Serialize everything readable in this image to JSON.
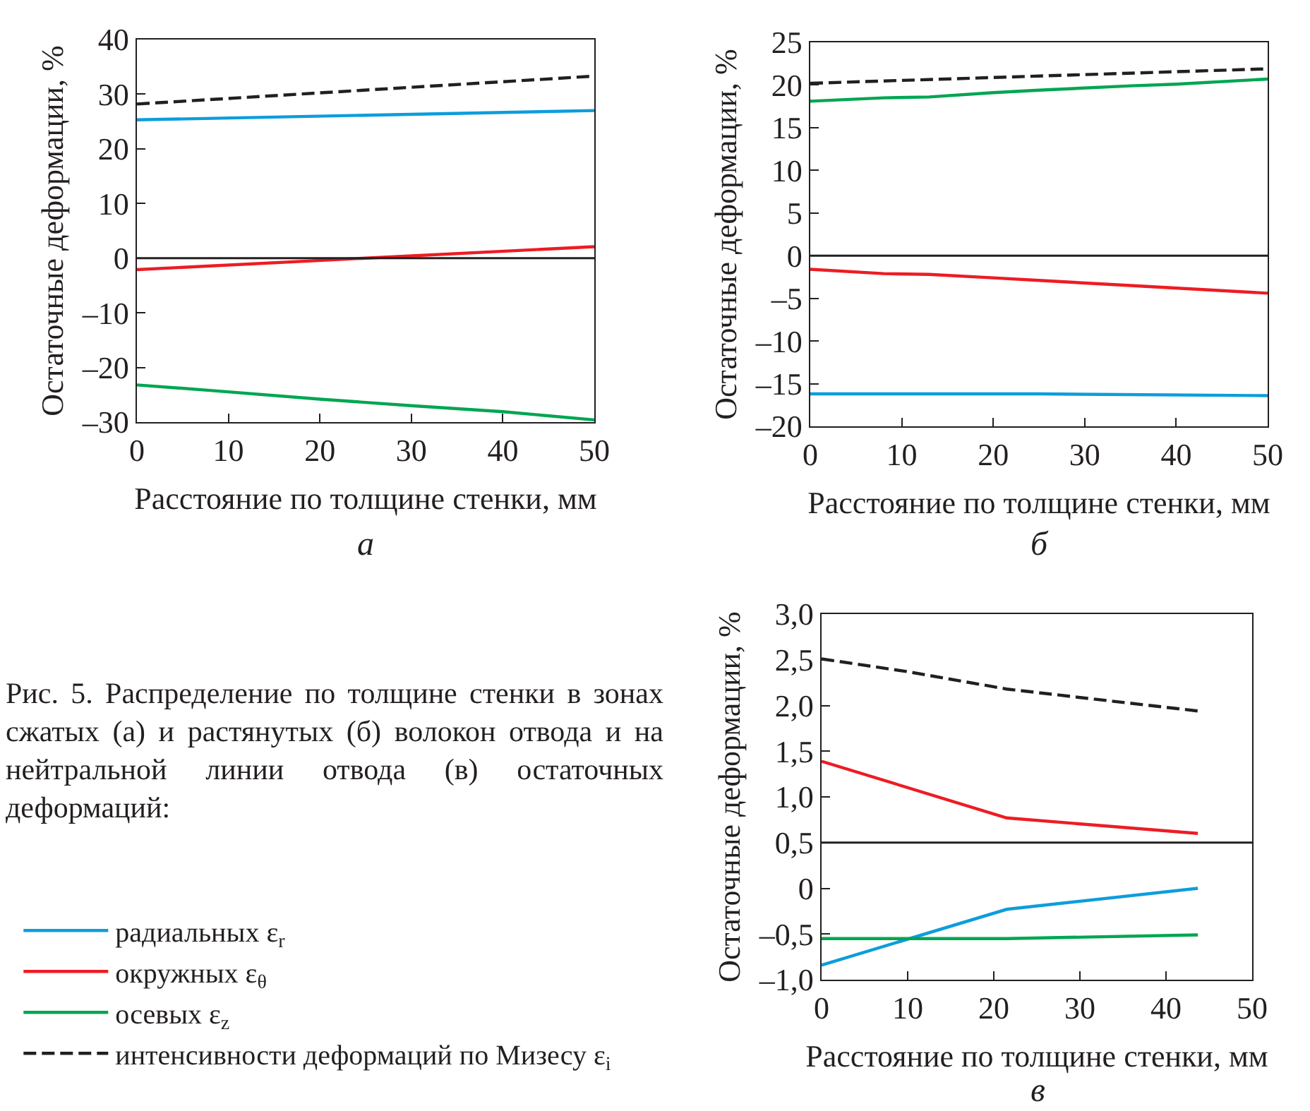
{
  "chart_data": [
    {
      "type": "line",
      "xlabel": "Расстояние по толщине стенки, мм",
      "ylabel": "Остаточные деформации, %",
      "annotations": [
        "а"
      ],
      "xlim": [
        0,
        50
      ],
      "xticks": [
        0,
        10,
        20,
        30,
        40,
        50
      ],
      "ylim": [
        -30,
        40
      ],
      "yticks": [
        {
          "value": -30,
          "label": "–30"
        },
        {
          "value": -20,
          "label": "–20"
        },
        {
          "value": -10,
          "label": "–10"
        },
        0,
        10,
        20,
        30,
        40
      ],
      "grid": false,
      "ref_lines": [
        {
          "axis": "y",
          "value": 0,
          "color": "#231f20"
        }
      ],
      "series": [
        {
          "color": "#231f20",
          "line_style": "dashed",
          "x": [
            0,
            50
          ],
          "values": [
            28.2,
            33.3
          ]
        },
        {
          "color": "#0d9ddb",
          "x": [
            0,
            50
          ],
          "values": [
            25.3,
            27.0
          ]
        },
        {
          "color": "#ed1c24",
          "x": [
            0,
            50
          ],
          "values": [
            -2.1,
            2.1
          ]
        },
        {
          "color": "#00a651",
          "x": [
            0,
            8,
            20,
            25,
            30,
            40,
            50
          ],
          "values": [
            -23.2,
            -24.2,
            -25.8,
            -26.4,
            -27.0,
            -28.1,
            -29.6
          ]
        }
      ]
    },
    {
      "type": "line",
      "xlabel": "Расстояние по толщине стенки, мм",
      "ylabel": "Остаточные деформации, %",
      "annotations": [
        "б"
      ],
      "xlim": [
        0,
        50
      ],
      "xticks": [
        0,
        10,
        20,
        30,
        40,
        50
      ],
      "ylim": [
        -20,
        25
      ],
      "yticks": [
        {
          "value": -20,
          "label": "–20"
        },
        {
          "value": -15,
          "label": "–15"
        },
        {
          "value": -10,
          "label": "–10"
        },
        {
          "value": -5,
          "label": "–5"
        },
        0,
        5,
        10,
        15,
        20,
        25
      ],
      "grid": false,
      "ref_lines": [
        {
          "axis": "y",
          "value": 0,
          "color": "#231f20"
        }
      ],
      "series": [
        {
          "color": "#231f20",
          "line_style": "dashed",
          "x": [
            0,
            50
          ],
          "values": [
            20.2,
            21.9
          ]
        },
        {
          "color": "#00a651",
          "x": [
            0,
            8,
            13,
            20,
            25,
            35,
            40,
            50
          ],
          "values": [
            18.1,
            18.5,
            18.6,
            19.1,
            19.4,
            19.9,
            20.1,
            20.7
          ]
        },
        {
          "color": "#ed1c24",
          "x": [
            0,
            8,
            13,
            20,
            25,
            35,
            50
          ],
          "values": [
            -1.6,
            -2.1,
            -2.2,
            -2.6,
            -2.9,
            -3.5,
            -4.4
          ]
        },
        {
          "color": "#0d9ddb",
          "x": [
            0,
            25,
            50
          ],
          "values": [
            -16.2,
            -16.2,
            -16.4
          ]
        }
      ]
    },
    {
      "type": "line",
      "xlabel": "Расстояние по толщине стенки, мм",
      "ylabel": "Остаточные деформации, %",
      "annotations": [
        "в",
        "Рис. 5. Распределение по толщине стенки в зонах сжатых (а) и растянутых (б) волокон отвода и на нейтральной линии отвода (в) остаточных деформаций:"
      ],
      "xlim": [
        0,
        50
      ],
      "xticks": [
        0,
        10,
        20,
        30,
        40,
        50
      ],
      "ylim": [
        -1,
        3
      ],
      "yticks": [
        {
          "value": -1,
          "label": "–1,0"
        },
        {
          "value": -0.5,
          "label": "–0,5"
        },
        0,
        {
          "value": 0.5,
          "label": "0,5"
        },
        {
          "value": 1,
          "label": "1,0"
        },
        {
          "value": 1.5,
          "label": "1,5"
        },
        {
          "value": 2,
          "label": "2,0"
        },
        {
          "value": 2.5,
          "label": "2,5"
        },
        {
          "value": 3,
          "label": "3,0"
        }
      ],
      "grid": false,
      "legend": "left",
      "ref_lines": [
        {
          "axis": "y",
          "value": 0.5,
          "color": "#231f20"
        }
      ],
      "series": [
        {
          "name": "радиальных ε$_{r}$",
          "color": "#0d9ddb",
          "x": [
            0,
            21.5,
            43.7
          ],
          "values": [
            -0.84,
            -0.23,
            0.0
          ]
        },
        {
          "name": "окружных ε$_{θ}$",
          "color": "#ed1c24",
          "x": [
            0,
            21.5,
            43.7
          ],
          "values": [
            1.39,
            0.77,
            0.6
          ]
        },
        {
          "name": "осевых ε$_{z}$",
          "color": "#00a651",
          "x": [
            0,
            21.5,
            43.7
          ],
          "values": [
            -0.55,
            -0.55,
            -0.51
          ]
        },
        {
          "name": "интенсивности деформаций по Мизесу ε$_{i}$",
          "color": "#231f20",
          "line_style": "dashed",
          "x": [
            0,
            10,
            21.5,
            43.7
          ],
          "values": [
            2.51,
            2.37,
            2.18,
            1.94
          ]
        }
      ]
    }
  ]
}
